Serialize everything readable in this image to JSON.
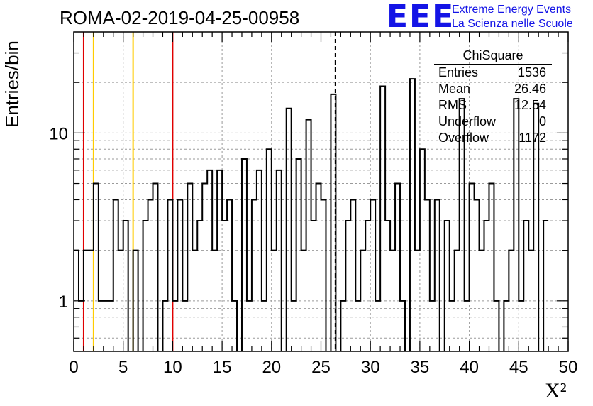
{
  "header": {
    "title": "ROMA-02-2019-04-25-00958",
    "logo": "EEE",
    "logo_line1": "Extreme Energy Events",
    "logo_line2": "La Scienza nelle Scuole"
  },
  "stats": {
    "title": "ChiSquare",
    "rows": [
      {
        "label": "Entries",
        "value": "1536"
      },
      {
        "label": "Mean",
        "value": "26.46"
      },
      {
        "label": "RMS",
        "value": "12.54"
      },
      {
        "label": "Underflow",
        "value": "0"
      },
      {
        "label": "Overflow",
        "value": "1172"
      }
    ]
  },
  "chart_data": {
    "type": "bar",
    "title": "ROMA-02-2019-04-25-00958",
    "xlabel": "X²",
    "ylabel": "Entries/bin",
    "xlim": [
      0,
      50
    ],
    "ylim": [
      0.5,
      40
    ],
    "yscale": "log",
    "grid": true,
    "bin_width": 0.5,
    "xticks": [
      0,
      5,
      10,
      15,
      20,
      25,
      30,
      35,
      40,
      45,
      50
    ],
    "yticks": [
      1,
      10
    ],
    "counts": [
      2,
      1,
      2,
      2,
      5,
      1,
      1,
      1,
      4,
      2,
      3,
      0,
      2,
      0,
      3,
      4,
      5,
      0,
      1,
      4,
      1,
      4,
      1,
      5,
      2,
      3,
      5,
      6,
      2,
      6,
      3,
      4,
      1,
      0,
      7,
      1,
      4,
      6,
      1,
      8,
      2,
      6,
      0,
      14,
      1,
      7,
      2,
      12,
      3,
      5,
      4,
      0,
      17,
      0,
      1,
      3,
      4,
      1,
      2,
      3,
      4,
      1,
      19,
      3,
      2,
      5,
      1,
      0,
      21,
      2,
      8,
      4,
      1,
      4,
      0,
      3,
      1,
      2,
      16,
      1,
      5,
      4,
      2,
      3,
      5,
      1,
      0,
      1,
      2,
      16,
      1,
      3,
      2,
      15,
      0,
      3
    ],
    "vlines": [
      {
        "x": 1,
        "color": "#e00000",
        "style": "solid"
      },
      {
        "x": 2,
        "color": "#ffcc00",
        "style": "solid"
      },
      {
        "x": 6,
        "color": "#ffcc00",
        "style": "solid"
      },
      {
        "x": 10,
        "color": "#e00000",
        "style": "solid"
      },
      {
        "x": 26.46,
        "color": "#000000",
        "style": "dashed"
      }
    ]
  }
}
